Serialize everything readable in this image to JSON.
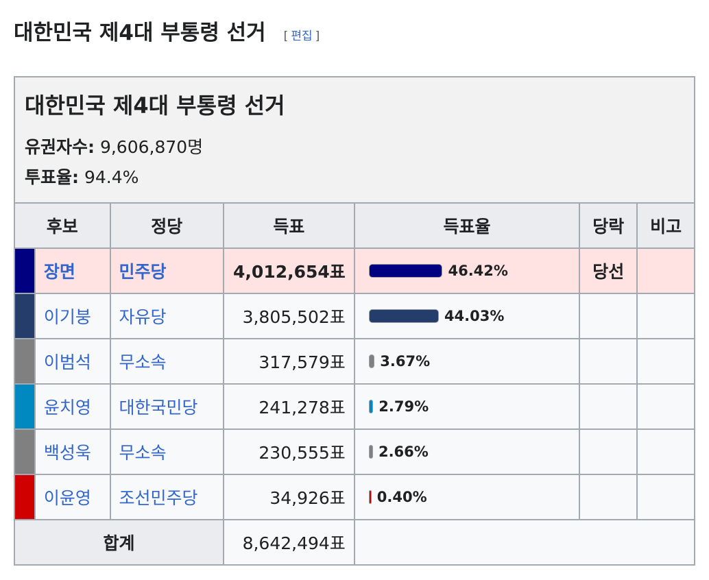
{
  "heading": {
    "title": "대한민국 제4대 부통령 선거",
    "edit_open": "[",
    "edit_label": "편집",
    "edit_close": "]"
  },
  "table": {
    "caption": "대한민국 제4대 부통령 선거",
    "electorate_label": "유권자수:",
    "electorate_value": "9,606,870명",
    "turnout_label": "투표율:",
    "turnout_value": "94.4%",
    "headers": [
      "후보",
      "정당",
      "득표",
      "득표율",
      "당락",
      "비고"
    ],
    "rows": [
      {
        "color": "#000080",
        "name": "장면",
        "party": "민주당",
        "votes": "4,012,654표",
        "share": 46.42,
        "share_text": "46.42%",
        "result": "당선",
        "note": "",
        "winner": true
      },
      {
        "color": "#253d6b",
        "name": "이기붕",
        "party": "자유당",
        "votes": "3,805,502표",
        "share": 44.03,
        "share_text": "44.03%",
        "result": "",
        "note": "",
        "winner": false
      },
      {
        "color": "#808080",
        "name": "이범석",
        "party": "무소속",
        "votes": "317,579표",
        "share": 3.67,
        "share_text": "3.67%",
        "result": "",
        "note": "",
        "winner": false
      },
      {
        "color": "#0088c0",
        "name": "윤치영",
        "party": "대한국민당",
        "votes": "241,278표",
        "share": 2.79,
        "share_text": "2.79%",
        "result": "",
        "note": "",
        "winner": false
      },
      {
        "color": "#808080",
        "name": "백성욱",
        "party": "무소속",
        "votes": "230,555표",
        "share": 2.66,
        "share_text": "2.66%",
        "result": "",
        "note": "",
        "winner": false
      },
      {
        "color": "#d00000",
        "name": "이윤영",
        "party": "조선민주당",
        "votes": "34,926표",
        "share": 0.4,
        "share_text": "0.40%",
        "result": "",
        "note": "",
        "winner": false
      }
    ],
    "total_label": "합계",
    "total_votes": "8,642,494표"
  }
}
